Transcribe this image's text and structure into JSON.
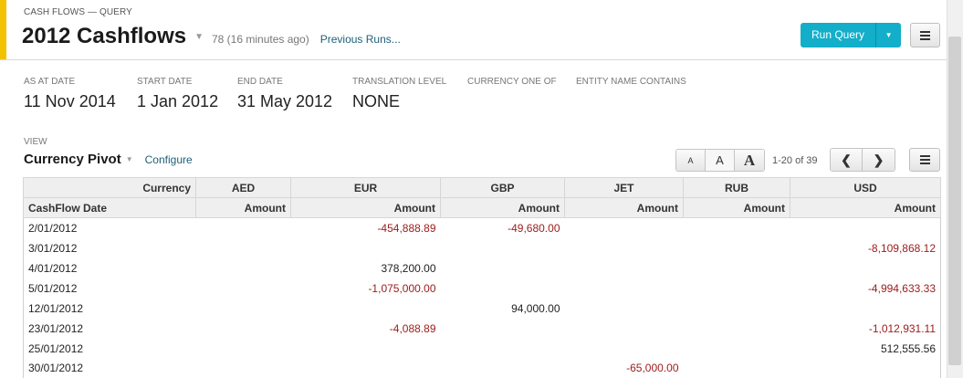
{
  "header": {
    "breadcrumb": "CASH FLOWS — QUERY",
    "title": "2012 Cashflows",
    "run_count": "78 (16 minutes ago)",
    "previous_runs": "Previous Runs...",
    "run_query_label": "Run Query",
    "accent_color": "#f2c200",
    "primary_color": "#13aec9"
  },
  "params": [
    {
      "label": "AS AT DATE",
      "value": "11 Nov 2014"
    },
    {
      "label": "START DATE",
      "value": "1 Jan 2012"
    },
    {
      "label": "END DATE",
      "value": "31 May 2012"
    },
    {
      "label": "TRANSLATION LEVEL",
      "value": "NONE"
    },
    {
      "label": "CURRENCY ONE OF",
      "value": ""
    },
    {
      "label": "ENTITY NAME CONTAINS",
      "value": ""
    }
  ],
  "view": {
    "label": "VIEW",
    "name": "Currency Pivot",
    "configure": "Configure",
    "font_sizes": [
      "A",
      "A",
      "A"
    ],
    "pager_text": "1-20 of 39"
  },
  "table": {
    "pivot_label": "Currency",
    "row_header": "CashFlow Date",
    "currencies": [
      "AED",
      "EUR",
      "GBP",
      "JET",
      "RUB",
      "USD"
    ],
    "measure": "Amount",
    "negative_color": "#9d1a1a",
    "rows": [
      {
        "date": "2/01/2012",
        "AED": "",
        "EUR": "-454,888.89",
        "GBP": "-49,680.00",
        "JET": "",
        "RUB": "",
        "USD": ""
      },
      {
        "date": "3/01/2012",
        "AED": "",
        "EUR": "",
        "GBP": "",
        "JET": "",
        "RUB": "",
        "USD": "-8,109,868.12"
      },
      {
        "date": "4/01/2012",
        "AED": "",
        "EUR": "378,200.00",
        "GBP": "",
        "JET": "",
        "RUB": "",
        "USD": ""
      },
      {
        "date": "5/01/2012",
        "AED": "",
        "EUR": "-1,075,000.00",
        "GBP": "",
        "JET": "",
        "RUB": "",
        "USD": "-4,994,633.33"
      },
      {
        "date": "12/01/2012",
        "AED": "",
        "EUR": "",
        "GBP": "94,000.00",
        "JET": "",
        "RUB": "",
        "USD": ""
      },
      {
        "date": "23/01/2012",
        "AED": "",
        "EUR": "-4,088.89",
        "GBP": "",
        "JET": "",
        "RUB": "",
        "USD": "-1,012,931.11"
      },
      {
        "date": "25/01/2012",
        "AED": "",
        "EUR": "",
        "GBP": "",
        "JET": "",
        "RUB": "",
        "USD": "512,555.56"
      },
      {
        "date": "30/01/2012",
        "AED": "",
        "EUR": "",
        "GBP": "",
        "JET": "-65,000.00",
        "RUB": "",
        "USD": ""
      }
    ]
  }
}
